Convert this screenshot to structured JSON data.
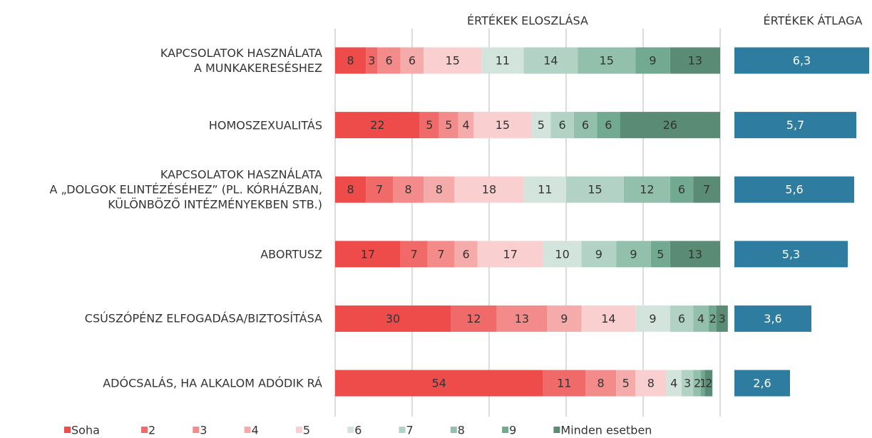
{
  "chart_data": [
    {
      "type": "stacked_bar",
      "title": "ÉRTÉKEK ELOSZLÁSA",
      "categories": [
        "KAPCSOLATOK HASZNÁLATA\nA MUNKAKERESÉSHEZ",
        "HOMOSZEXUALITÁS",
        "KAPCSOLATOK HASZNÁLATA\nA „DOLGOK ELINTÉZÉSÉHEZ” (PL. KÓRHÁZBAN,\nKÜLÖNBÖZŐ INTÉZMÉNYEKBEN STB.)",
        "ABORTUSZ",
        "CSÚSZÓPÉNZ ELFOGADÁSA/BIZTOSÍTÁSA",
        "ADÓCSALÁS, HA ALKALOM ADÓDIK RÁ"
      ],
      "series": [
        {
          "name": "Soha",
          "color": "#ee4b4b",
          "values": [
            8,
            22,
            8,
            17,
            30,
            54
          ]
        },
        {
          "name": "2",
          "color": "#f06a6a",
          "values": [
            3,
            5,
            7,
            7,
            12,
            11
          ]
        },
        {
          "name": "3",
          "color": "#f38b8b",
          "values": [
            6,
            5,
            8,
            7,
            13,
            8
          ]
        },
        {
          "name": "4",
          "color": "#f6abab",
          "values": [
            6,
            4,
            8,
            6,
            9,
            5
          ]
        },
        {
          "name": "5",
          "color": "#f9cfcf",
          "values": [
            15,
            15,
            18,
            17,
            14,
            8
          ]
        },
        {
          "name": "6",
          "color": "#d2e4dc",
          "values": [
            11,
            5,
            11,
            10,
            9,
            4
          ]
        },
        {
          "name": "7",
          "color": "#b1d2c4",
          "values": [
            14,
            6,
            15,
            9,
            6,
            3
          ]
        },
        {
          "name": "8",
          "color": "#92c0ac",
          "values": [
            15,
            6,
            12,
            9,
            4,
            2
          ]
        },
        {
          "name": "9",
          "color": "#72aa91",
          "values": [
            9,
            6,
            6,
            5,
            2,
            1
          ]
        },
        {
          "name": "Minden esetben",
          "color": "#5a8b75",
          "values": [
            13,
            26,
            7,
            13,
            3,
            2
          ]
        }
      ],
      "xlim": [
        0,
        100
      ],
      "xticks": [
        0,
        20,
        40,
        60,
        80,
        100
      ],
      "grid": true,
      "legend": "bottom"
    },
    {
      "type": "bar",
      "title": "ÉRTÉKEK ÁTLAGA",
      "values": [
        6.3,
        5.7,
        5.6,
        5.3,
        3.6,
        2.6
      ],
      "value_labels": [
        "6,3",
        "5,7",
        "5,6",
        "5,3",
        "3,6",
        "2,6"
      ],
      "color": "#2f7ca1",
      "xlim": [
        0,
        6.4
      ]
    }
  ]
}
